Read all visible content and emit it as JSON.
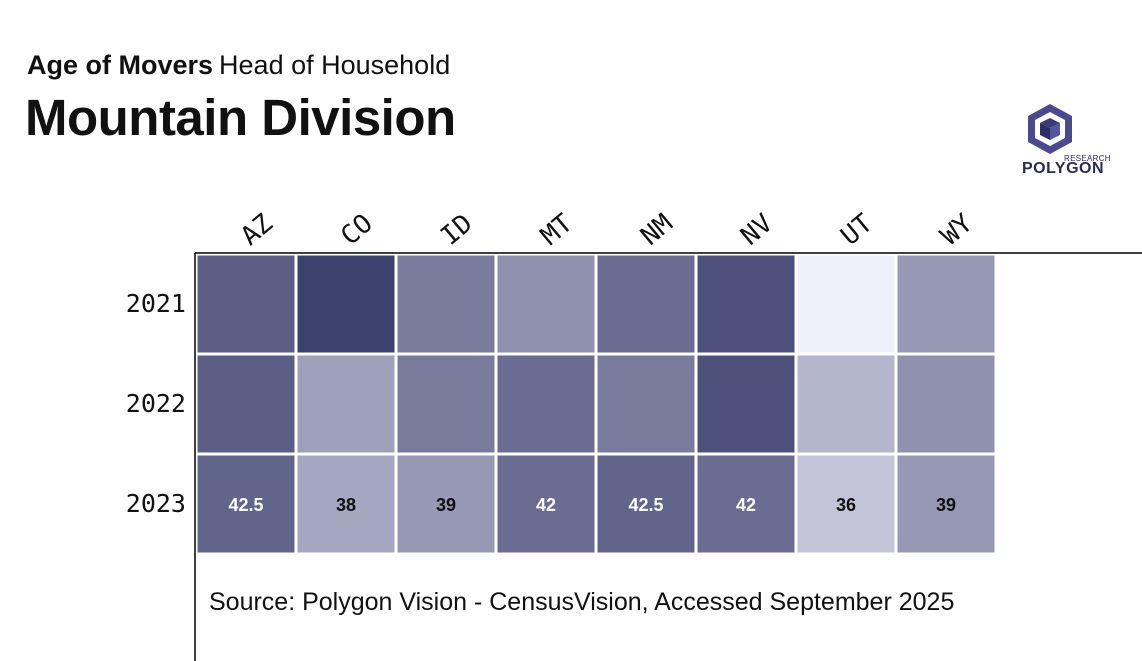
{
  "header": {
    "title_bold": "Age of Movers",
    "title_regular": "Head of Household",
    "main_title": "Mountain Division"
  },
  "logo": {
    "small_text": "RESEARCH",
    "text": "POLYGON"
  },
  "source": "Source: Polygon Vision - CensusVision, Accessed September 2025",
  "colors": {
    "dark": "#3d416e",
    "light": "#f0f0fa",
    "grid_border": "#ffffff",
    "axis": "#000000"
  },
  "chart_data": {
    "type": "heatmap",
    "title": "Mountain Division",
    "subtitle": "Age of Movers Head of Household",
    "x_categories": [
      "AZ",
      "CO",
      "ID",
      "MT",
      "NM",
      "NV",
      "UT",
      "WY"
    ],
    "y_categories": [
      "2021",
      "2022",
      "2023"
    ],
    "values": [
      [
        43,
        45,
        41,
        39.5,
        42,
        44,
        33,
        39
      ],
      [
        43,
        38.5,
        41,
        42,
        41,
        44,
        37,
        39.5
      ],
      [
        42.5,
        38,
        39,
        42,
        42.5,
        42,
        36,
        39
      ]
    ],
    "labels": [
      [
        "",
        "",
        "",
        "",
        "",
        "",
        "",
        ""
      ],
      [
        "",
        "",
        "",
        "",
        "",
        "",
        "",
        ""
      ],
      [
        "42.5",
        "38",
        "39",
        "42",
        "42.5",
        "42",
        "36",
        "39"
      ]
    ],
    "color_range": [
      33,
      45
    ],
    "legend": "none",
    "grid": false
  }
}
